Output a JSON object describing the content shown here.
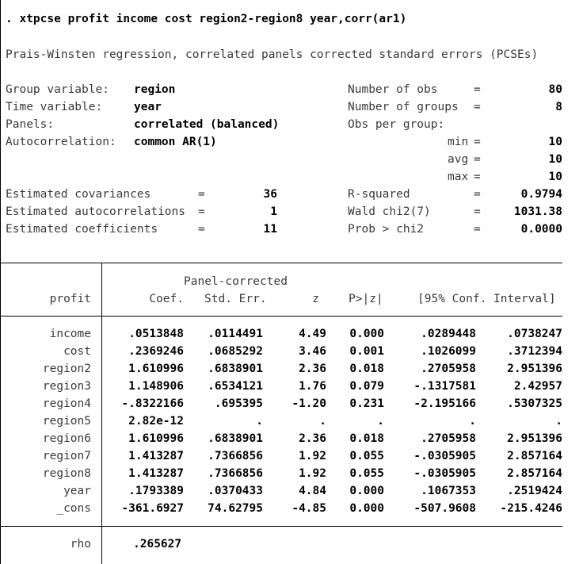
{
  "command": ". xtpcse profit income cost region2-region8 year,corr(ar1)",
  "title": "Prais-Winsten regression, correlated panels corrected standard errors (PCSEs)",
  "left_info": [
    {
      "label": "Group variable:",
      "value": "region"
    },
    {
      "label": "Time variable:",
      "value": "year"
    },
    {
      "label": "Panels:",
      "value": "correlated (balanced)"
    },
    {
      "label": "Autocorrelation:",
      "value": "common AR(1)"
    }
  ],
  "right_info": [
    {
      "label": "Number of obs",
      "eq": "=",
      "value": "80"
    },
    {
      "label": "Number of groups",
      "eq": "=",
      "value": "8"
    },
    {
      "label": "Obs per group:",
      "eq": "",
      "value": ""
    },
    {
      "label": "min",
      "eq": "=",
      "value": "10"
    },
    {
      "label": "avg",
      "eq": "=",
      "value": "10"
    },
    {
      "label": "max",
      "eq": "=",
      "value": "10"
    }
  ],
  "estimates": [
    {
      "label": "Estimated covariances",
      "eq": "=",
      "value": "36"
    },
    {
      "label": "Estimated autocorrelations",
      "eq": "=",
      "value": "1"
    },
    {
      "label": "Estimated coefficients",
      "eq": "=",
      "value": "11"
    }
  ],
  "fit": [
    {
      "label": "R-squared",
      "eq": "=",
      "value": "0.9794"
    },
    {
      "label": "Wald chi2(7)",
      "eq": "=",
      "value": "1031.38"
    },
    {
      "label": "Prob > chi2",
      "eq": "=",
      "value": "0.0000"
    }
  ],
  "table": {
    "super_header": "Panel-corrected",
    "depvar": "profit",
    "headers": [
      "Coef.",
      "Std. Err.",
      "z",
      "P>|z|",
      "[95% Conf. Interval]"
    ],
    "rows": [
      {
        "var": "income",
        "coef": ".0513848",
        "se": ".0114491",
        "z": "4.49",
        "p": "0.000",
        "lo": ".0289448",
        "hi": ".0738247"
      },
      {
        "var": "cost",
        "coef": ".2369246",
        "se": ".0685292",
        "z": "3.46",
        "p": "0.001",
        "lo": ".1026099",
        "hi": ".3712394"
      },
      {
        "var": "region2",
        "coef": "1.610996",
        "se": ".6838901",
        "z": "2.36",
        "p": "0.018",
        "lo": ".2705958",
        "hi": "2.951396"
      },
      {
        "var": "region3",
        "coef": "1.148906",
        "se": ".6534121",
        "z": "1.76",
        "p": "0.079",
        "lo": "-.1317581",
        "hi": "2.42957"
      },
      {
        "var": "region4",
        "coef": "-.8322166",
        "se": ".695395",
        "z": "-1.20",
        "p": "0.231",
        "lo": "-2.195166",
        "hi": ".5307325"
      },
      {
        "var": "region5",
        "coef": "2.82e-12",
        "se": ".",
        "z": ".",
        "p": ".",
        "lo": ".",
        "hi": "."
      },
      {
        "var": "region6",
        "coef": "1.610996",
        "se": ".6838901",
        "z": "2.36",
        "p": "0.018",
        "lo": ".2705958",
        "hi": "2.951396"
      },
      {
        "var": "region7",
        "coef": "1.413287",
        "se": ".7366856",
        "z": "1.92",
        "p": "0.055",
        "lo": "-.0305905",
        "hi": "2.857164"
      },
      {
        "var": "region8",
        "coef": "1.413287",
        "se": ".7366856",
        "z": "1.92",
        "p": "0.055",
        "lo": "-.0305905",
        "hi": "2.857164"
      },
      {
        "var": "year",
        "coef": ".1793389",
        "se": ".0370433",
        "z": "4.84",
        "p": "0.000",
        "lo": ".1067353",
        "hi": ".2519424"
      },
      {
        "var": "_cons",
        "coef": "-361.6927",
        "se": "74.62795",
        "z": "-4.85",
        "p": "0.000",
        "lo": "-507.9608",
        "hi": "-215.4246"
      }
    ],
    "rho_label": "rho",
    "rho_value": ".265627"
  }
}
